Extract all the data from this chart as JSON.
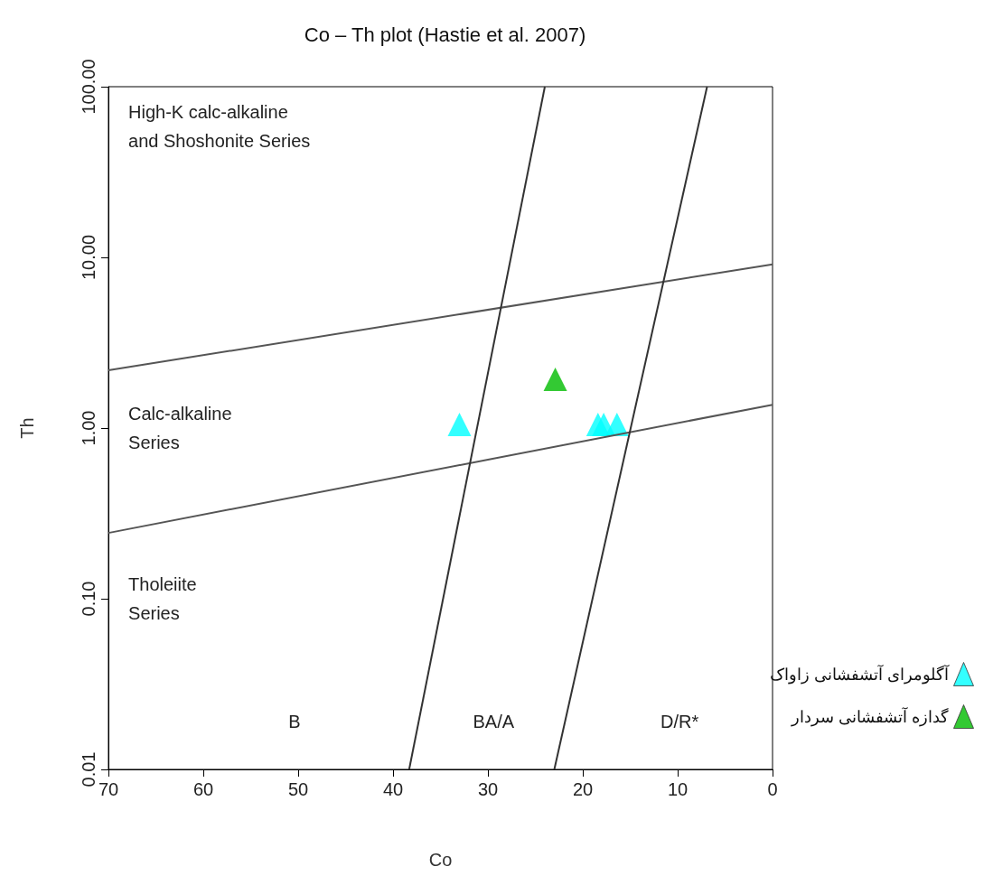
{
  "chart_data": {
    "type": "scatter",
    "title": "Co – Th plot (Hastie et al. 2007)",
    "xlabel": "Co",
    "ylabel": "Th",
    "xlim": [
      70,
      0
    ],
    "xticks": [
      70,
      60,
      50,
      40,
      30,
      20,
      10,
      0
    ],
    "ylim": [
      0.01,
      100
    ],
    "yticks": [
      {
        "value": 0.01,
        "label": "0.01"
      },
      {
        "value": 0.1,
        "label": "0.10"
      },
      {
        "value": 1,
        "label": "1.00"
      },
      {
        "value": 10,
        "label": "10.00"
      },
      {
        "value": 100,
        "label": "100.00"
      }
    ],
    "log": "y",
    "grid": false,
    "legend": "right",
    "marker": "triangle",
    "series": [
      {
        "type": "line",
        "color": "#555555",
        "line_style": "solid",
        "marker": "none",
        "x": [
          70,
          0
        ],
        "values": [
          2.18,
          9.1
        ]
      },
      {
        "type": "line",
        "color": "#555555",
        "line_style": "solid",
        "marker": "none",
        "x": [
          70,
          0
        ],
        "values": [
          0.243,
          1.37
        ]
      },
      {
        "type": "line",
        "color": "#333333",
        "line_style": "solid",
        "marker": "none",
        "x": [
          38.3,
          24
        ],
        "values": [
          0.01,
          100
        ]
      },
      {
        "type": "line",
        "color": "#333333",
        "line_style": "solid",
        "marker": "none",
        "x": [
          23,
          6.9
        ],
        "values": [
          0.01,
          100
        ]
      },
      {
        "name": "آگلومرای آتشفشانی زاواک",
        "color": "#00ffff",
        "x": [
          33.0,
          18.4,
          17.8,
          16.4
        ],
        "values": [
          1.05,
          1.05,
          1.05,
          1.05
        ]
      },
      {
        "name": "گدازه آتشفشانی سردار",
        "color": "#00bb00",
        "x": [
          22.9
        ],
        "values": [
          1.93
        ]
      }
    ],
    "annotations": [
      "High-K calc-alkaline\nand Shoshonite Series",
      "Calc-alkaline\nSeries",
      "Tholeiite\nSeries",
      "B",
      "BA/A",
      "D/R*"
    ]
  }
}
